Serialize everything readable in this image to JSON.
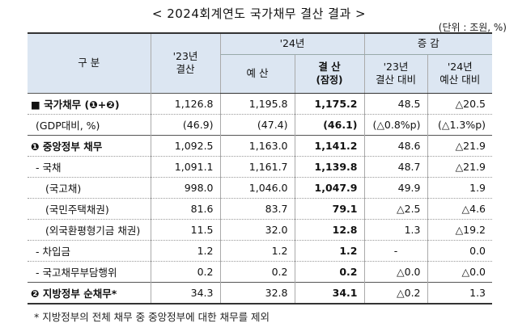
{
  "title": "< 2024회계연도 국가채무 결산 결과 >",
  "unit": "(단위 : 조원, %)",
  "header": {
    "category": "구  분",
    "y23": "'23년\n결산",
    "y24": "'24년",
    "y24_budget": "예 산",
    "y24_settle": "결 산",
    "y24_settle_sub": "(잠정)",
    "change": "증 감",
    "vs23": "'23년\n결산 대비",
    "vs24": "'24년\n예산 대비"
  },
  "rows": [
    {
      "label": "■  국가채무 (❶+❷)",
      "v": [
        "1,126.8",
        "1,195.8",
        "1,175.2",
        "48.5",
        "△20.5"
      ],
      "bold": true
    },
    {
      "label": "(GDP대비, %)",
      "v": [
        "(46.9)",
        "(47.4)",
        "(46.1)",
        "(△0.8%p)",
        "(△1.3%p)"
      ],
      "bold": false
    },
    {
      "label": "❶  중앙정부 채무",
      "v": [
        "1,092.5",
        "1,163.0",
        "1,141.2",
        "48.6",
        "△21.9"
      ],
      "bold": true
    },
    {
      "label": "-  국채",
      "v": [
        "1,091.1",
        "1,161.7",
        "1,139.8",
        "48.7",
        "△21.9"
      ],
      "bold": false
    },
    {
      "label": "(국고채)",
      "v": [
        "998.0",
        "1,046.0",
        "1,047.9",
        "49.9",
        "1.9"
      ],
      "bold": false
    },
    {
      "label": "(국민주택채권)",
      "v": [
        "81.6",
        "83.7",
        "79.1",
        "△2.5",
        "△4.6"
      ],
      "bold": false
    },
    {
      "label": "(외국환평형기금 채권)",
      "v": [
        "11.5",
        "32.0",
        "12.8",
        "1.3",
        "△19.2"
      ],
      "bold": false
    },
    {
      "label": "-  차입금",
      "v": [
        "1.2",
        "1.2",
        "1.2",
        "-",
        "0.0"
      ],
      "bold": false
    },
    {
      "label": "-  국고채무부담행위",
      "v": [
        "0.2",
        "0.2",
        "0.2",
        "△0.0",
        "△0.0"
      ],
      "bold": false
    },
    {
      "label": "❷  지방정부 순채무*",
      "v": [
        "34.3",
        "32.8",
        "34.1",
        "△0.2",
        "1.3"
      ],
      "bold": true
    }
  ],
  "footnote": "* 지방정부의 전체 채무 중 중앙정부에 대한 채무를 제외"
}
